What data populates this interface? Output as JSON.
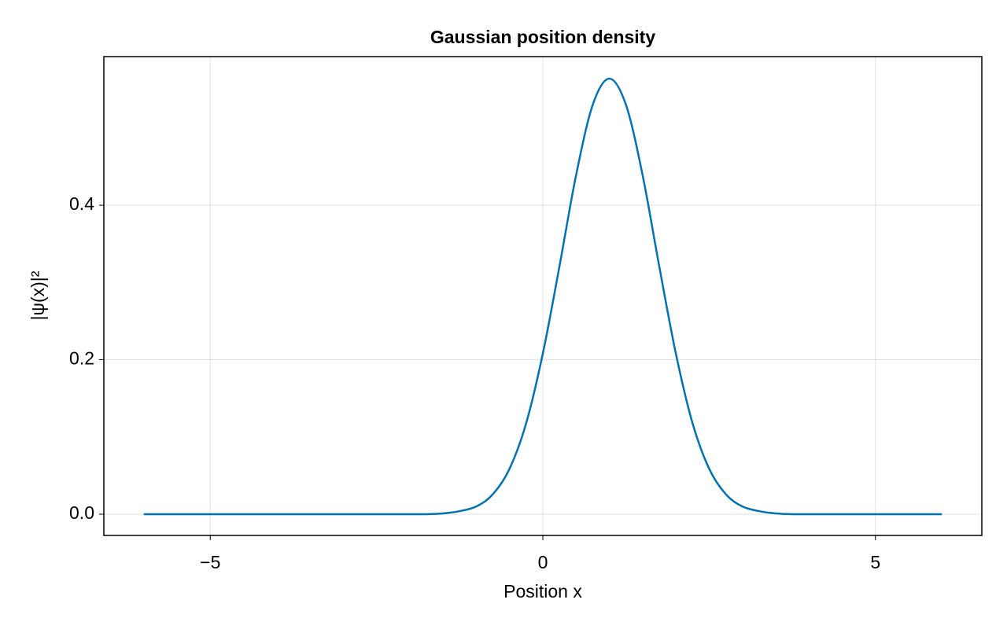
{
  "chart_data": {
    "type": "line",
    "title": "Gaussian position density",
    "x_label": "Position x",
    "y_label": "|ψ(x)|²",
    "x": [
      -6,
      -5.75,
      -5.5,
      -5.25,
      -5,
      -4.75,
      -4.5,
      -4.25,
      -4,
      -3.75,
      -3.5,
      -3.25,
      -3,
      -2.75,
      -2.5,
      -2.25,
      -2,
      -1.75,
      -1.5,
      -1.25,
      -1,
      -0.75,
      -0.5,
      -0.25,
      0,
      0.25,
      0.5,
      0.75,
      1,
      1.25,
      1.5,
      1.75,
      2,
      2.25,
      2.5,
      2.75,
      3,
      3.25,
      3.5,
      3.75,
      4,
      4.25,
      4.5,
      4.75,
      5,
      5.25,
      5.5,
      5.75,
      6
    ],
    "series": [
      {
        "name": "|ψ(x)|²",
        "color": "#0072b2",
        "values": [
          0,
          0,
          0,
          0,
          0,
          0,
          0,
          0,
          0,
          0,
          0,
          0,
          0,
          0,
          0,
          0,
          0,
          0,
          0.001,
          0.004,
          0.01,
          0.026,
          0.059,
          0.118,
          0.208,
          0.321,
          0.439,
          0.53,
          0.564,
          0.53,
          0.439,
          0.321,
          0.208,
          0.118,
          0.059,
          0.026,
          0.01,
          0.004,
          0.001,
          0,
          0,
          0,
          0,
          0,
          0,
          0,
          0,
          0,
          0
        ]
      }
    ],
    "xlim": [
      -6.6,
      6.6
    ],
    "ylim": [
      -0.0275,
      0.5925
    ],
    "xticks": [
      {
        "value": -5,
        "label": "−5"
      },
      0,
      5
    ],
    "yticks": [
      {
        "value": 0,
        "label": "0.0"
      },
      {
        "value": 0.2,
        "label": "0.2"
      },
      {
        "value": 0.4,
        "label": "0.4"
      }
    ],
    "grid": true
  }
}
